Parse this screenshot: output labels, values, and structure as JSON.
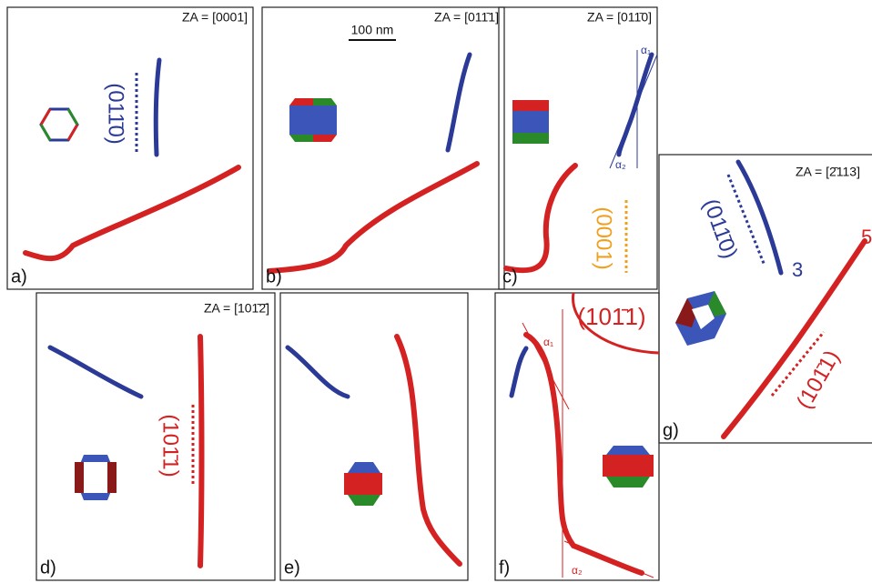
{
  "panels": {
    "a": {
      "label": "a)",
      "zone_axis": "ZA = [0001]",
      "plane": "(011̄0)"
    },
    "b": {
      "label": "b)",
      "zone_axis": "ZA = [011̄1]",
      "scale_bar": "100 nm"
    },
    "c": {
      "label": "c)",
      "zone_axis": "ZA = [011̄0]",
      "alpha1": "α₁",
      "alpha2": "α₂",
      "plane": "(0001)"
    },
    "d": {
      "label": "d)",
      "zone_axis": "ZA = [101̄2̄]",
      "plane": "(101̄1)"
    },
    "e": {
      "label": "e)"
    },
    "f": {
      "label": "f)",
      "plane": "(101̄1)",
      "alpha1": "α₁",
      "alpha2": "α₂"
    },
    "g": {
      "label": "g)",
      "zone_axis": "ZA = [2̄113]",
      "plane_blue": "(011̄0)",
      "plane_red": "(101̄1)",
      "marker_blue": "3",
      "marker_red": "5"
    }
  }
}
